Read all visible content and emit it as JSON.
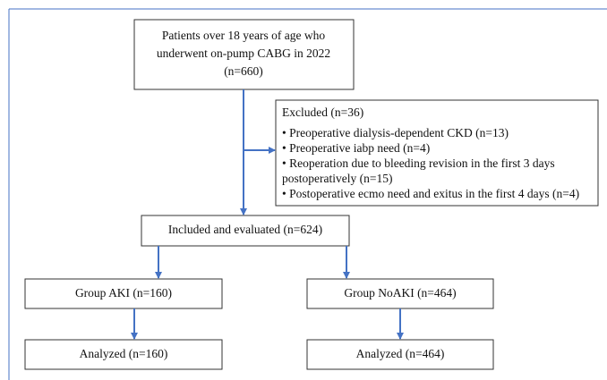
{
  "nodes": [
    {
      "lines": [
        "Patients over 18 years of age who",
        "underwent on-pump CABG in 2022",
        "(n=660)"
      ]
    },
    {
      "title": "Excluded (n=36)",
      "items": [
        [
          "• Preoperative dialysis-dependent CKD (n=13)"
        ],
        [
          "• Preoperative iabp need (n=4)"
        ],
        [
          "• Reoperation due to bleeding revision in the first 3 days",
          "postoperatively (n=15)"
        ],
        [
          "• Postoperative ecmo need and exitus in the first 4 days (n=4)"
        ]
      ]
    },
    {
      "lines": [
        "Included and evaluated (n=624)"
      ]
    },
    {
      "lines": [
        "Group AKI (n=160)"
      ]
    },
    {
      "lines": [
        "Group NoAKI (n=464)"
      ]
    },
    {
      "lines": [
        "Analyzed (n=160)"
      ]
    },
    {
      "lines": [
        "Analyzed (n=464)"
      ]
    }
  ]
}
